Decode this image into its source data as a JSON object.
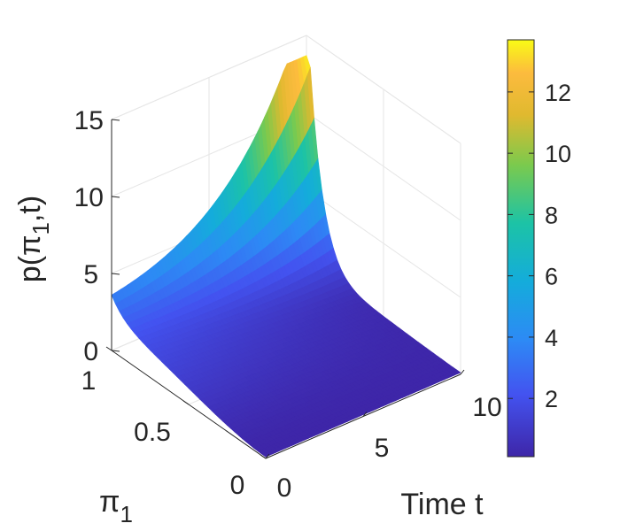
{
  "chart_data": {
    "type": "surface",
    "title": "",
    "xlabel": "Time t",
    "ylabel_parts": {
      "base": "π",
      "sub": "1"
    },
    "zlabel_parts": {
      "pre": "p(",
      "sym": "π",
      "sub": "1",
      "post": ",t)"
    },
    "xlim": [
      0,
      10
    ],
    "ylim": [
      0,
      1
    ],
    "zlim": [
      0,
      15
    ],
    "x_ticks": [
      {
        "v": 0,
        "label": "0"
      },
      {
        "v": 5,
        "label": "5"
      },
      {
        "v": 10,
        "label": "10"
      }
    ],
    "y_ticks": [
      {
        "v": 0,
        "label": "0"
      },
      {
        "v": 0.5,
        "label": "0.5"
      },
      {
        "v": 1,
        "label": "1"
      }
    ],
    "z_ticks": [
      {
        "v": 0,
        "label": "0"
      },
      {
        "v": 5,
        "label": "5"
      },
      {
        "v": 10,
        "label": "10"
      },
      {
        "v": 15,
        "label": "15"
      }
    ],
    "grid": true,
    "colormap": "parula",
    "colorbar": {
      "range": [
        0.1,
        13.7
      ],
      "ticks": [
        {
          "v": 2,
          "label": "2"
        },
        {
          "v": 4,
          "label": "4"
        },
        {
          "v": 6,
          "label": "6"
        },
        {
          "v": 8,
          "label": "8"
        },
        {
          "v": 10,
          "label": "10"
        },
        {
          "v": 12,
          "label": "12"
        }
      ]
    },
    "surface_samples": [
      {
        "pi1": 1.0,
        "t": 0,
        "p": 2.0
      },
      {
        "pi1": 1.0,
        "t": 5,
        "p": 6.0
      },
      {
        "pi1": 1.0,
        "t": 10,
        "p": 13.7
      },
      {
        "pi1": 0.5,
        "t": 0,
        "p": 1.0
      },
      {
        "pi1": 0.5,
        "t": 10,
        "p": 0.5
      },
      {
        "pi1": 0.0,
        "t": 0,
        "p": 0.1
      },
      {
        "pi1": 0.0,
        "t": 10,
        "p": 0.1
      }
    ]
  }
}
